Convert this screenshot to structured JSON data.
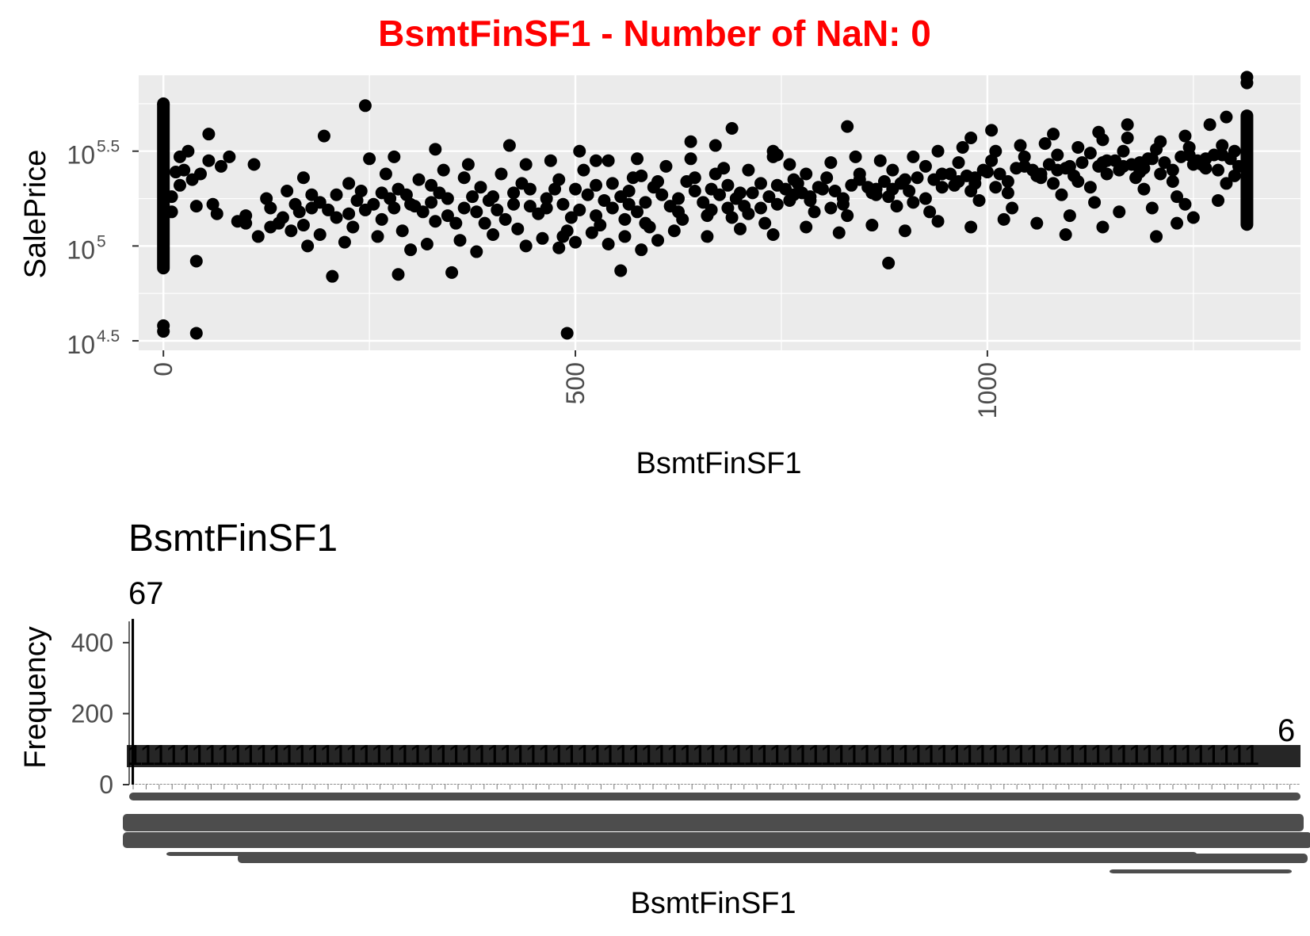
{
  "main_title": "BsmtFinSF1 - Number of NaN: 0",
  "main_title_color": "#ff0000",
  "chart_data": [
    {
      "type": "scatter",
      "title": "",
      "xlabel": "BsmtFinSF1",
      "ylabel": "SalePrice",
      "y_scale": "log10",
      "xlim": [
        -30,
        1380
      ],
      "ylim_log10": [
        4.45,
        5.9
      ],
      "x_ticks": [
        0,
        500,
        1000
      ],
      "x_tick_labels": [
        "0",
        "500",
        "1000"
      ],
      "y_ticks_log10": [
        4.5,
        5.0,
        5.5
      ],
      "y_tick_base": "10",
      "y_tick_exponents": [
        "4.5",
        "5",
        "5.5"
      ],
      "grid": true,
      "panel_background": "#ebebeb",
      "point_color": "#000000",
      "notes_columns": "Dense vertical clusters of points at x=0 and x≈1315 (values clipped at upper bound).",
      "column_x0": {
        "x": 0,
        "y_log10_range": [
          4.85,
          5.78
        ]
      },
      "column_xmax": {
        "x": 1315,
        "y_log10_range": [
          5.08,
          5.72
        ]
      },
      "points": [
        [
          0,
          5.75
        ],
        [
          0,
          4.58
        ],
        [
          0,
          4.55
        ],
        [
          40,
          4.54
        ],
        [
          245,
          5.74
        ],
        [
          195,
          5.58
        ],
        [
          55,
          5.59
        ],
        [
          490,
          4.54
        ],
        [
          205,
          4.84
        ],
        [
          285,
          4.85
        ],
        [
          350,
          4.86
        ],
        [
          40,
          4.92
        ],
        [
          555,
          4.87
        ],
        [
          1005,
          5.61
        ],
        [
          690,
          5.62
        ],
        [
          830,
          5.63
        ],
        [
          1290,
          5.68
        ],
        [
          1270,
          5.64
        ],
        [
          1170,
          5.64
        ],
        [
          1135,
          5.6
        ],
        [
          1080,
          5.59
        ],
        [
          980,
          5.57
        ],
        [
          1140,
          5.44
        ],
        [
          1190,
          5.41
        ],
        [
          1250,
          5.43
        ],
        [
          1300,
          5.37
        ],
        [
          880,
          4.91
        ],
        [
          1205,
          5.05
        ],
        [
          1095,
          5.06
        ],
        [
          1140,
          5.1
        ],
        [
          1230,
          5.12
        ],
        [
          1250,
          5.15
        ],
        [
          760,
          5.43
        ],
        [
          745,
          5.48
        ],
        [
          640,
          5.55
        ],
        [
          670,
          5.53
        ],
        [
          740,
          5.47
        ],
        [
          525,
          5.45
        ],
        [
          575,
          5.46
        ],
        [
          505,
          5.5
        ],
        [
          420,
          5.53
        ],
        [
          330,
          5.51
        ],
        [
          280,
          5.47
        ],
        [
          250,
          5.46
        ],
        [
          110,
          5.43
        ],
        [
          80,
          5.47
        ],
        [
          70,
          5.42
        ],
        [
          55,
          5.45
        ],
        [
          30,
          5.5
        ],
        [
          20,
          5.47
        ],
        [
          25,
          5.4
        ],
        [
          15,
          5.39
        ],
        [
          45,
          5.38
        ],
        [
          35,
          5.35
        ],
        [
          20,
          5.32
        ],
        [
          10,
          5.26
        ],
        [
          10,
          5.18
        ],
        [
          40,
          5.21
        ],
        [
          60,
          5.22
        ],
        [
          65,
          5.17
        ],
        [
          90,
          5.13
        ],
        [
          100,
          5.16
        ],
        [
          115,
          5.05
        ],
        [
          130,
          5.1
        ],
        [
          140,
          5.12
        ],
        [
          155,
          5.08
        ],
        [
          170,
          5.11
        ],
        [
          180,
          5.2
        ],
        [
          190,
          5.23
        ],
        [
          200,
          5.19
        ],
        [
          210,
          5.15
        ],
        [
          225,
          5.17
        ],
        [
          235,
          5.24
        ],
        [
          240,
          5.29
        ],
        [
          255,
          5.22
        ],
        [
          265,
          5.14
        ],
        [
          275,
          5.25
        ],
        [
          285,
          5.3
        ],
        [
          295,
          5.27
        ],
        [
          305,
          5.21
        ],
        [
          315,
          5.18
        ],
        [
          325,
          5.23
        ],
        [
          335,
          5.28
        ],
        [
          345,
          5.16
        ],
        [
          355,
          5.12
        ],
        [
          365,
          5.2
        ],
        [
          375,
          5.26
        ],
        [
          385,
          5.31
        ],
        [
          395,
          5.24
        ],
        [
          405,
          5.19
        ],
        [
          415,
          5.14
        ],
        [
          425,
          5.28
        ],
        [
          435,
          5.33
        ],
        [
          445,
          5.21
        ],
        [
          455,
          5.17
        ],
        [
          465,
          5.25
        ],
        [
          475,
          5.3
        ],
        [
          485,
          5.22
        ],
        [
          495,
          5.15
        ],
        [
          505,
          5.19
        ],
        [
          515,
          5.27
        ],
        [
          525,
          5.32
        ],
        [
          535,
          5.24
        ],
        [
          545,
          5.2
        ],
        [
          555,
          5.26
        ],
        [
          565,
          5.29
        ],
        [
          575,
          5.18
        ],
        [
          585,
          5.23
        ],
        [
          595,
          5.31
        ],
        [
          605,
          5.27
        ],
        [
          615,
          5.21
        ],
        [
          625,
          5.25
        ],
        [
          635,
          5.34
        ],
        [
          645,
          5.29
        ],
        [
          655,
          5.23
        ],
        [
          665,
          5.19
        ],
        [
          675,
          5.27
        ],
        [
          685,
          5.32
        ],
        [
          695,
          5.25
        ],
        [
          705,
          5.21
        ],
        [
          715,
          5.28
        ],
        [
          725,
          5.33
        ],
        [
          735,
          5.26
        ],
        [
          745,
          5.22
        ],
        [
          755,
          5.3
        ],
        [
          765,
          5.35
        ],
        [
          775,
          5.28
        ],
        [
          785,
          5.24
        ],
        [
          795,
          5.31
        ],
        [
          805,
          5.36
        ],
        [
          815,
          5.29
        ],
        [
          825,
          5.25
        ],
        [
          835,
          5.32
        ],
        [
          845,
          5.38
        ],
        [
          855,
          5.31
        ],
        [
          865,
          5.27
        ],
        [
          875,
          5.34
        ],
        [
          885,
          5.4
        ],
        [
          895,
          5.33
        ],
        [
          905,
          5.29
        ],
        [
          915,
          5.36
        ],
        [
          925,
          5.42
        ],
        [
          935,
          5.35
        ],
        [
          945,
          5.31
        ],
        [
          955,
          5.38
        ],
        [
          965,
          5.44
        ],
        [
          975,
          5.37
        ],
        [
          985,
          5.33
        ],
        [
          995,
          5.4
        ],
        [
          1005,
          5.45
        ],
        [
          1015,
          5.38
        ],
        [
          1025,
          5.34
        ],
        [
          1035,
          5.41
        ],
        [
          1045,
          5.47
        ],
        [
          1055,
          5.4
        ],
        [
          1065,
          5.36
        ],
        [
          1075,
          5.43
        ],
        [
          1085,
          5.48
        ],
        [
          1095,
          5.41
        ],
        [
          1105,
          5.37
        ],
        [
          1115,
          5.44
        ],
        [
          1125,
          5.49
        ],
        [
          1135,
          5.42
        ],
        [
          1145,
          5.38
        ],
        [
          1155,
          5.45
        ],
        [
          1165,
          5.5
        ],
        [
          1175,
          5.43
        ],
        [
          1185,
          5.39
        ],
        [
          1195,
          5.46
        ],
        [
          1205,
          5.51
        ],
        [
          1215,
          5.44
        ],
        [
          1225,
          5.4
        ],
        [
          1235,
          5.47
        ],
        [
          1245,
          5.52
        ],
        [
          1255,
          5.45
        ],
        [
          1265,
          5.41
        ],
        [
          1275,
          5.48
        ],
        [
          1285,
          5.53
        ],
        [
          1295,
          5.46
        ],
        [
          1305,
          5.42
        ],
        [
          150,
          5.29
        ],
        [
          160,
          5.22
        ],
        [
          175,
          5.0
        ],
        [
          220,
          5.02
        ],
        [
          260,
          5.05
        ],
        [
          300,
          4.98
        ],
        [
          320,
          5.01
        ],
        [
          360,
          5.03
        ],
        [
          380,
          4.97
        ],
        [
          400,
          5.06
        ],
        [
          440,
          5.0
        ],
        [
          460,
          5.04
        ],
        [
          480,
          4.99
        ],
        [
          500,
          5.02
        ],
        [
          520,
          5.07
        ],
        [
          540,
          5.01
        ],
        [
          560,
          5.05
        ],
        [
          580,
          4.98
        ],
        [
          600,
          5.03
        ],
        [
          620,
          5.08
        ],
        [
          660,
          5.05
        ],
        [
          700,
          5.09
        ],
        [
          740,
          5.06
        ],
        [
          780,
          5.1
        ],
        [
          820,
          5.07
        ],
        [
          860,
          5.11
        ],
        [
          900,
          5.08
        ],
        [
          940,
          5.13
        ],
        [
          980,
          5.1
        ],
        [
          1020,
          5.14
        ],
        [
          1060,
          5.12
        ],
        [
          1100,
          5.16
        ],
        [
          1160,
          5.18
        ],
        [
          1200,
          5.2
        ],
        [
          1240,
          5.22
        ],
        [
          1280,
          5.24
        ],
        [
          130,
          5.2
        ],
        [
          210,
          5.27
        ],
        [
          310,
          5.35
        ],
        [
          410,
          5.38
        ],
        [
          510,
          5.4
        ],
        [
          610,
          5.42
        ],
        [
          710,
          5.4
        ],
        [
          810,
          5.44
        ],
        [
          910,
          5.47
        ],
        [
          1010,
          5.5
        ],
        [
          1110,
          5.52
        ],
        [
          1210,
          5.55
        ],
        [
          170,
          5.36
        ],
        [
          270,
          5.38
        ],
        [
          370,
          5.43
        ],
        [
          470,
          5.45
        ],
        [
          570,
          5.36
        ],
        [
          670,
          5.38
        ],
        [
          770,
          5.33
        ],
        [
          870,
          5.45
        ],
        [
          970,
          5.52
        ],
        [
          1070,
          5.54
        ],
        [
          1170,
          5.57
        ],
        [
          230,
          5.1
        ],
        [
          330,
          5.13
        ],
        [
          430,
          5.09
        ],
        [
          530,
          5.11
        ],
        [
          630,
          5.14
        ],
        [
          730,
          5.12
        ],
        [
          830,
          5.16
        ],
        [
          930,
          5.18
        ],
        [
          1030,
          5.2
        ],
        [
          1130,
          5.23
        ],
        [
          1230,
          5.26
        ],
        [
          190,
          5.06
        ],
        [
          290,
          5.08
        ],
        [
          390,
          5.12
        ],
        [
          490,
          5.08
        ],
        [
          590,
          5.1
        ],
        [
          690,
          5.15
        ],
        [
          790,
          5.18
        ],
        [
          890,
          5.21
        ],
        [
          990,
          5.24
        ],
        [
          1090,
          5.27
        ],
        [
          1190,
          5.3
        ],
        [
          1290,
          5.33
        ],
        [
          145,
          5.15
        ],
        [
          245,
          5.19
        ],
        [
          345,
          5.25
        ],
        [
          445,
          5.3
        ],
        [
          545,
          5.33
        ],
        [
          645,
          5.36
        ],
        [
          745,
          5.32
        ],
        [
          845,
          5.35
        ],
        [
          945,
          5.38
        ],
        [
          1045,
          5.42
        ],
        [
          1145,
          5.45
        ],
        [
          1245,
          5.48
        ],
        [
          125,
          5.25
        ],
        [
          225,
          5.33
        ],
        [
          325,
          5.32
        ],
        [
          425,
          5.22
        ],
        [
          525,
          5.16
        ],
        [
          625,
          5.18
        ],
        [
          725,
          5.2
        ],
        [
          825,
          5.22
        ],
        [
          925,
          5.25
        ],
        [
          1025,
          5.28
        ],
        [
          1125,
          5.31
        ],
        [
          1225,
          5.34
        ],
        [
          100,
          5.12
        ],
        [
          180,
          5.27
        ],
        [
          280,
          5.2
        ],
        [
          380,
          5.18
        ],
        [
          480,
          5.35
        ],
        [
          580,
          5.37
        ],
        [
          680,
          5.41
        ],
        [
          780,
          5.38
        ],
        [
          880,
          5.26
        ],
        [
          980,
          5.29
        ],
        [
          1080,
          5.33
        ],
        [
          1180,
          5.36
        ],
        [
          1280,
          5.4
        ],
        [
          710,
          5.17
        ],
        [
          810,
          5.2
        ],
        [
          910,
          5.23
        ],
        [
          1010,
          5.31
        ],
        [
          1110,
          5.34
        ],
        [
          1210,
          5.38
        ],
        [
          340,
          5.4
        ],
        [
          440,
          5.43
        ],
        [
          540,
          5.45
        ],
        [
          640,
          5.46
        ],
        [
          740,
          5.5
        ],
        [
          840,
          5.47
        ],
        [
          940,
          5.5
        ],
        [
          1040,
          5.53
        ],
        [
          1140,
          5.56
        ],
        [
          1240,
          5.58
        ],
        [
          560,
          5.14
        ],
        [
          660,
          5.16
        ],
        [
          760,
          5.24
        ],
        [
          860,
          5.28
        ],
        [
          960,
          5.32
        ],
        [
          1060,
          5.37
        ],
        [
          1160,
          5.4
        ],
        [
          1260,
          5.43
        ],
        [
          300,
          5.22
        ],
        [
          400,
          5.26
        ],
        [
          500,
          5.3
        ],
        [
          600,
          5.34
        ],
        [
          700,
          5.28
        ],
        [
          800,
          5.3
        ],
        [
          900,
          5.35
        ],
        [
          1000,
          5.39
        ],
        [
          1100,
          5.42
        ],
        [
          1200,
          5.46
        ],
        [
          1300,
          5.5
        ],
        [
          165,
          5.18
        ],
        [
          265,
          5.28
        ],
        [
          365,
          5.36
        ],
        [
          465,
          5.2
        ],
        [
          565,
          5.22
        ],
        [
          665,
          5.3
        ],
        [
          765,
          5.27
        ],
        [
          865,
          5.3
        ],
        [
          965,
          5.34
        ],
        [
          1065,
          5.38
        ],
        [
          1165,
          5.42
        ],
        [
          1265,
          5.46
        ],
        [
          485,
          5.05
        ],
        [
          585,
          5.12
        ],
        [
          685,
          5.2
        ],
        [
          785,
          5.26
        ],
        [
          885,
          5.3
        ],
        [
          985,
          5.36
        ],
        [
          1085,
          5.4
        ],
        [
          1185,
          5.44
        ],
        [
          1285,
          5.48
        ]
      ]
    },
    {
      "type": "bar",
      "title": "BsmtFinSF1",
      "xlabel": "BsmtFinSF1",
      "ylabel": "Frequency",
      "ylim": [
        0,
        460
      ],
      "y_ticks": [
        0,
        200,
        400
      ],
      "y_tick_labels": [
        "0",
        "200",
        "400"
      ],
      "grid": false,
      "bar_color": "#000000",
      "categories_note": "One bar per distinct BsmtFinSF1 value; category labels overlap into illegible smudges.",
      "first_value": {
        "category": "0",
        "count": 467
      },
      "first_label_visible": "67",
      "last_label_visible": "6",
      "bar_count": 330,
      "typical_count": 1,
      "visible_count_label_row": "1"
    }
  ]
}
